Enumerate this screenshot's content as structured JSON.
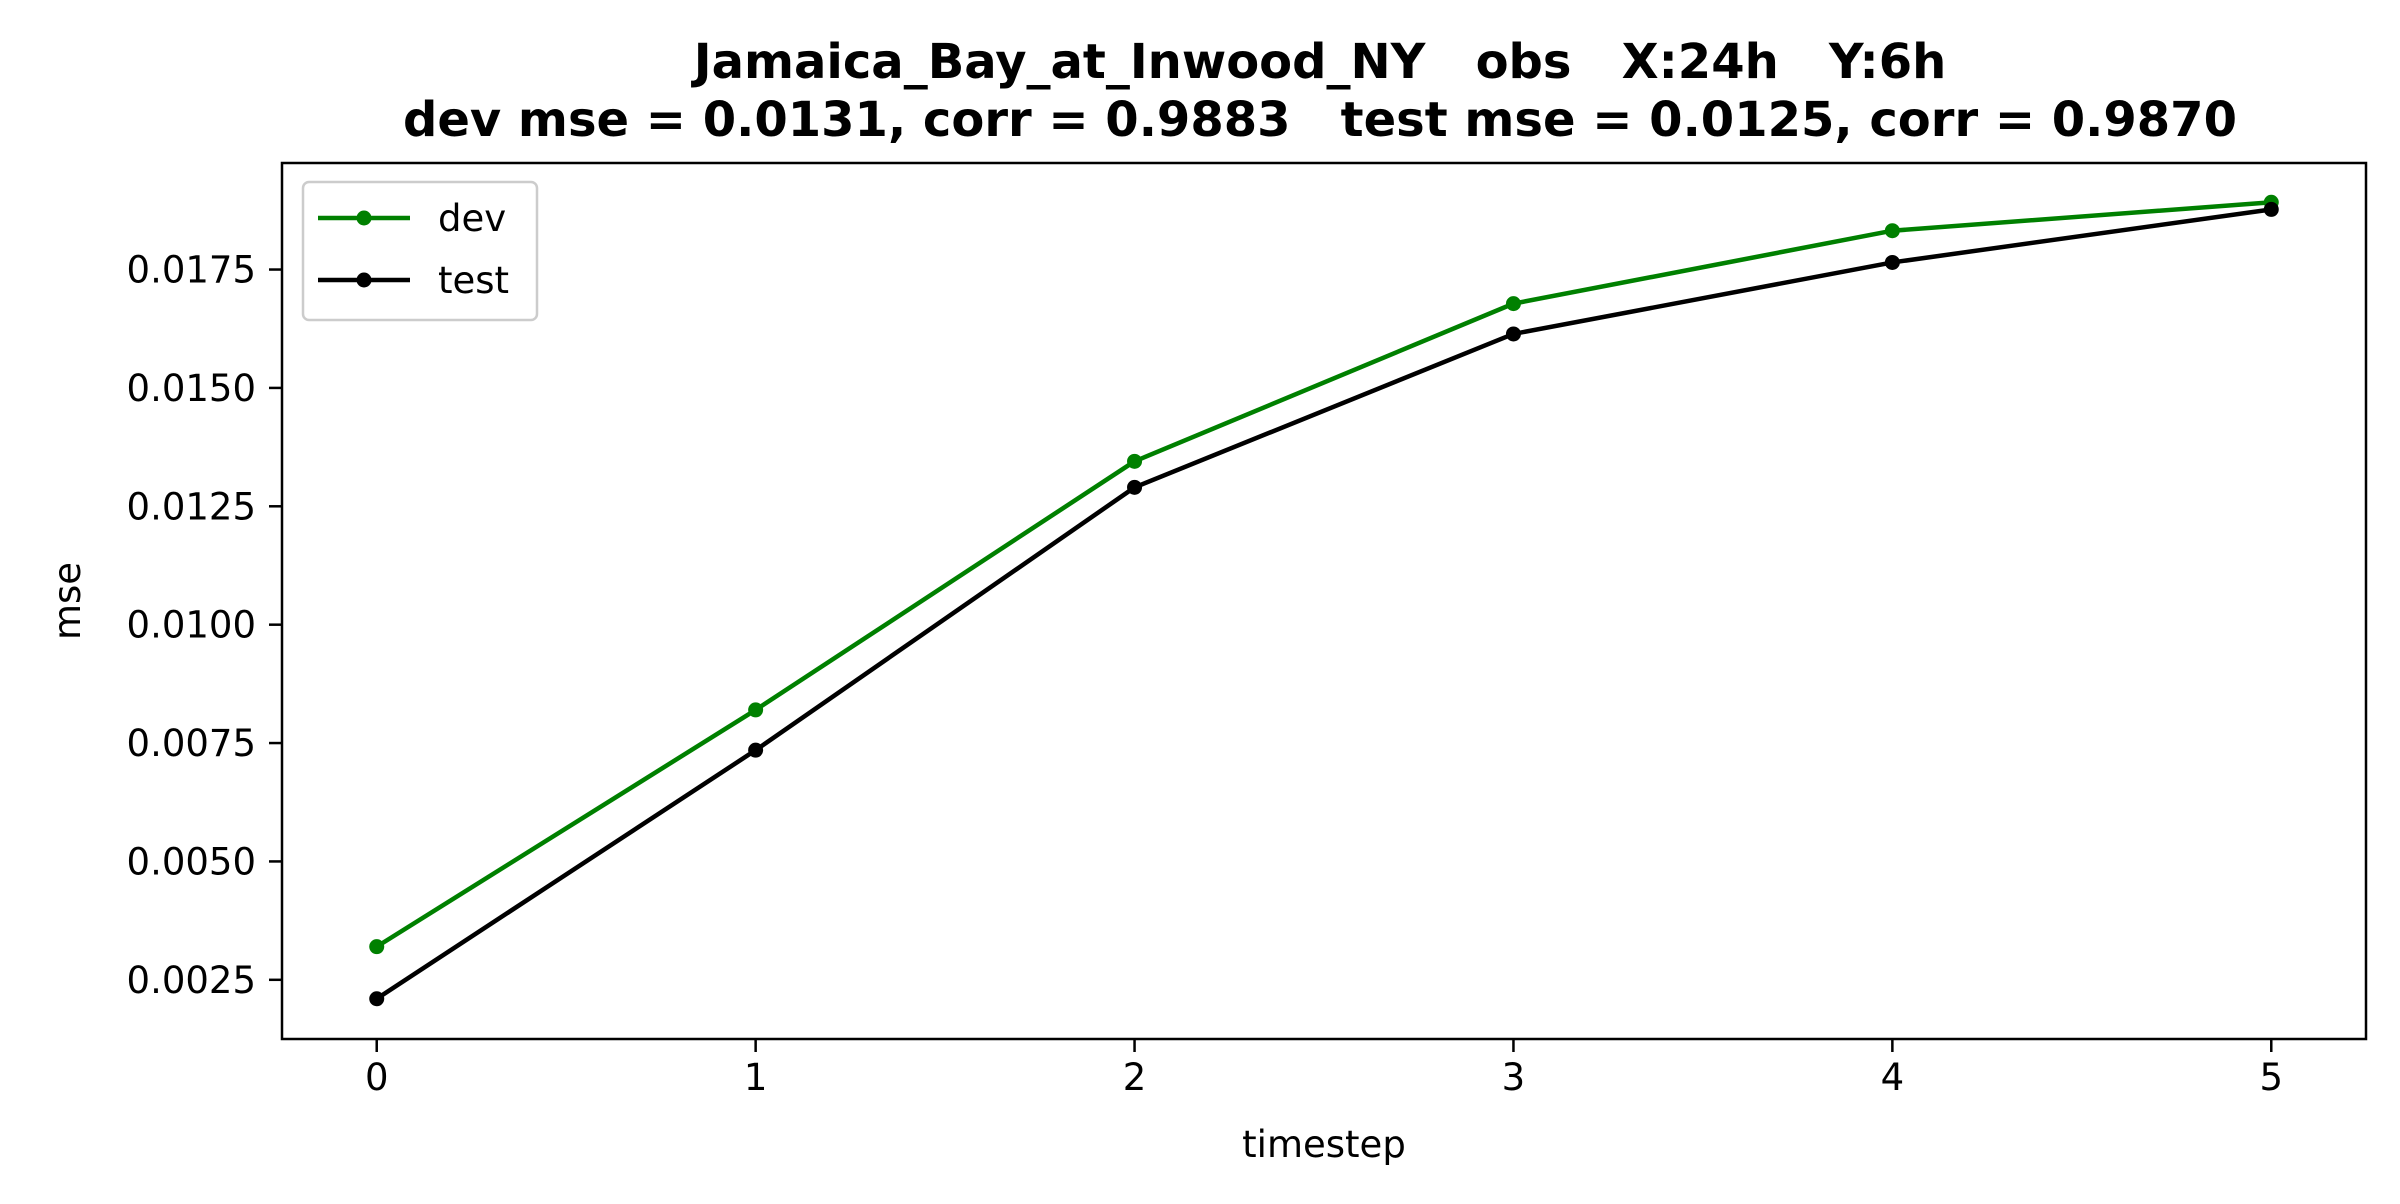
{
  "chart_data": {
    "type": "line",
    "title_line1": "Jamaica_Bay_at_Inwood_NY   obs   X:24h   Y:6h",
    "title_line2": "dev mse = 0.0131, corr = 0.9883   test mse = 0.0125, corr = 0.9870",
    "xlabel": "timestep",
    "ylabel": "mse",
    "x": [
      0,
      1,
      2,
      3,
      4,
      5
    ],
    "xticks": [
      "0",
      "1",
      "2",
      "3",
      "4",
      "5"
    ],
    "yticks": [
      0.0025,
      0.005,
      0.0075,
      0.01,
      0.0125,
      0.015,
      0.0175
    ],
    "ytick_labels": [
      "0.0025",
      "0.0050",
      "0.0075",
      "0.0100",
      "0.0125",
      "0.0150",
      "0.0175"
    ],
    "xlim": [
      -0.25,
      5.25
    ],
    "ylim": [
      0.00125,
      0.01975
    ],
    "grid": false,
    "legend_position": "upper-left",
    "series": [
      {
        "name": "dev",
        "color": "#008000",
        "values": [
          0.0032,
          0.0082,
          0.01345,
          0.01678,
          0.01832,
          0.01892
        ]
      },
      {
        "name": "test",
        "color": "#000000",
        "values": [
          0.0021,
          0.00735,
          0.0129,
          0.01614,
          0.01765,
          0.01877
        ]
      }
    ]
  }
}
